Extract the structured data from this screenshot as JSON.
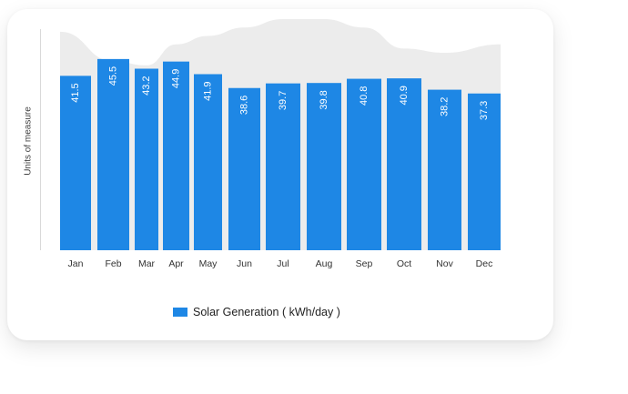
{
  "chart_data": {
    "type": "bar",
    "categories": [
      "Jan",
      "Feb",
      "Mar",
      "Apr",
      "May",
      "Jun",
      "Jul",
      "Aug",
      "Sep",
      "Oct",
      "Nov",
      "Dec"
    ],
    "series": [
      {
        "name": "Solar Generation ( kWh/day )",
        "values": [
          41.5,
          45.5,
          43.2,
          44.9,
          41.9,
          38.6,
          39.7,
          39.8,
          40.8,
          40.9,
          38.2,
          37.3
        ],
        "color": "#1e87e5"
      }
    ],
    "background_area": {
      "color": "#ececec",
      "values": [
        52,
        45,
        44,
        49,
        51,
        53,
        55,
        55,
        53,
        48,
        47,
        49
      ]
    },
    "ylabel": "Units of measure",
    "xlabel": "",
    "ylim": [
      0,
      55
    ],
    "grid": false,
    "legend": "bottom-center"
  }
}
